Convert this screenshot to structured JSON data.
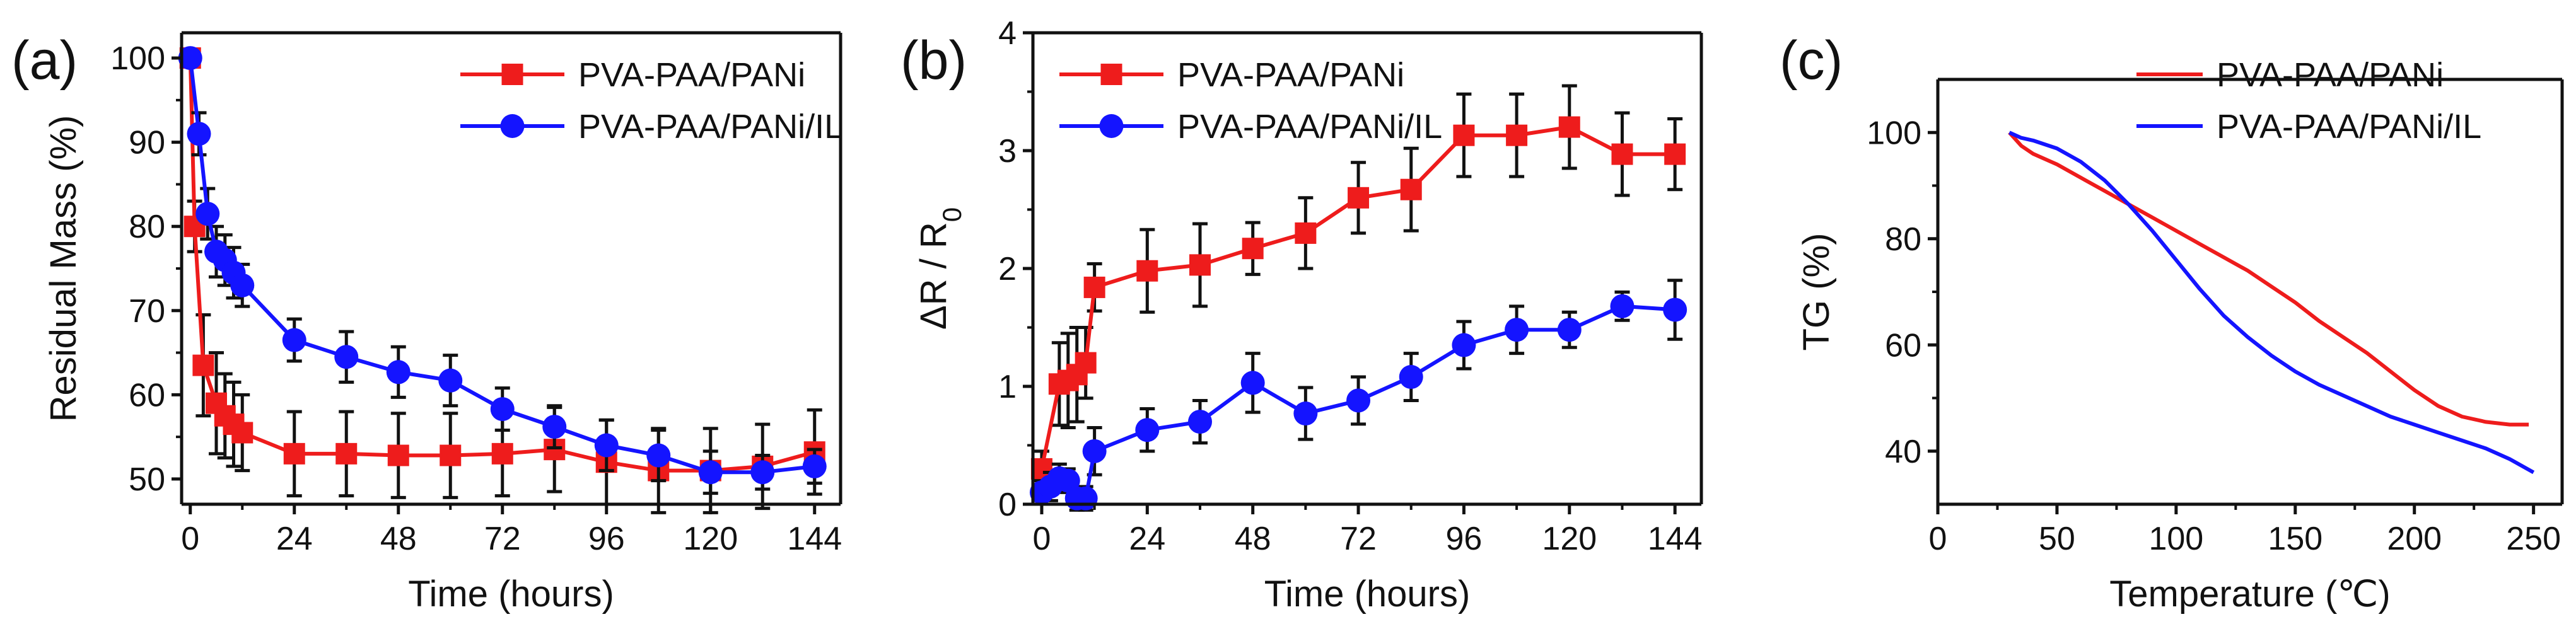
{
  "chart_data": [
    {
      "panel_label": "(a)",
      "type": "line",
      "xlabel": "Time (hours)",
      "ylabel": "Residual Mass (%)",
      "xlim": [
        -2,
        150
      ],
      "ylim": [
        47,
        103
      ],
      "xticks": [
        0,
        24,
        48,
        72,
        96,
        120,
        144
      ],
      "yticks": [
        50,
        60,
        70,
        80,
        90,
        100
      ],
      "grid": false,
      "legend": "top-right",
      "series": [
        {
          "name": "PVA-PAA/PANi",
          "color": "#ee1c1c",
          "marker": "square",
          "x": [
            0,
            1,
            3,
            6,
            8,
            10,
            12,
            24,
            36,
            48,
            60,
            72,
            84,
            96,
            108,
            120,
            132,
            144
          ],
          "y": [
            100,
            80,
            63.5,
            59,
            57.5,
            56.5,
            55.5,
            53,
            53,
            52.8,
            52.8,
            53,
            53.5,
            52,
            51,
            51,
            51.5,
            53.2
          ],
          "err": [
            0,
            3,
            6,
            6,
            5,
            5,
            4.5,
            5,
            5,
            5,
            5,
            5,
            5,
            5,
            5,
            5,
            5,
            5
          ]
        },
        {
          "name": "PVA-PAA/PANi/IL",
          "color": "#1414ff",
          "marker": "circle",
          "x": [
            0,
            2,
            4,
            6,
            8,
            10,
            12,
            24,
            36,
            48,
            60,
            72,
            84,
            96,
            108,
            120,
            132,
            144
          ],
          "y": [
            100,
            91,
            81.5,
            77,
            76,
            74.5,
            73,
            66.5,
            64.5,
            62.7,
            61.7,
            58.3,
            56.2,
            54,
            52.8,
            50.8,
            50.8,
            51.5
          ],
          "err": [
            0,
            2.5,
            3,
            3,
            3,
            3,
            2.5,
            2.5,
            3,
            3,
            3,
            2.5,
            2.5,
            3,
            3,
            2.5,
            2,
            2
          ]
        }
      ]
    },
    {
      "panel_label": "(b)",
      "type": "line",
      "xlabel": "Time (hours)",
      "ylabel": "ΔR / R0",
      "ylabel_main": "ΔR / R",
      "ylabel_sub": "0",
      "xlim": [
        -2,
        150
      ],
      "ylim": [
        0,
        4
      ],
      "xticks": [
        0,
        24,
        48,
        72,
        96,
        120,
        144
      ],
      "yticks": [
        0,
        1,
        2,
        3,
        4
      ],
      "grid": false,
      "legend": "top-left",
      "series": [
        {
          "name": "PVA-PAA/PANi",
          "color": "#ee1c1c",
          "marker": "square",
          "x": [
            0,
            4,
            6,
            8,
            10,
            12,
            24,
            36,
            48,
            60,
            72,
            84,
            96,
            108,
            120,
            132,
            144
          ],
          "y": [
            0.3,
            1.02,
            1.05,
            1.1,
            1.2,
            1.84,
            1.98,
            2.03,
            2.17,
            2.3,
            2.6,
            2.67,
            3.13,
            3.13,
            3.2,
            2.97,
            2.97
          ],
          "err": [
            0.15,
            0.35,
            0.4,
            0.4,
            0.3,
            0.2,
            0.35,
            0.35,
            0.22,
            0.3,
            0.3,
            0.35,
            0.35,
            0.35,
            0.35,
            0.35,
            0.3
          ]
        },
        {
          "name": "PVA-PAA/PANi/IL",
          "color": "#1414ff",
          "marker": "circle",
          "x": [
            0,
            2,
            4,
            6,
            8,
            10,
            12,
            24,
            36,
            48,
            60,
            72,
            84,
            96,
            108,
            120,
            132,
            144
          ],
          "y": [
            0.1,
            0.15,
            0.22,
            0.2,
            0.05,
            0.05,
            0.45,
            0.63,
            0.7,
            1.03,
            0.77,
            0.88,
            1.08,
            1.35,
            1.48,
            1.48,
            1.68,
            1.65
          ],
          "err": [
            0.1,
            0.12,
            0.12,
            0.1,
            0.1,
            0.1,
            0.2,
            0.18,
            0.18,
            0.25,
            0.22,
            0.2,
            0.2,
            0.2,
            0.2,
            0.15,
            0.12,
            0.25
          ]
        }
      ]
    },
    {
      "panel_label": "(c)",
      "type": "line",
      "xlabel": "Temperature (℃)",
      "ylabel": "TG (%)",
      "xlim": [
        0,
        262
      ],
      "ylim": [
        30,
        110
      ],
      "xticks": [
        0,
        50,
        100,
        150,
        200,
        250
      ],
      "yticks": [
        40,
        60,
        80,
        100
      ],
      "grid": false,
      "legend": "top-right",
      "series": [
        {
          "name": "PVA-PAA/PANi",
          "color": "#ee1c1c",
          "marker": "none",
          "x": [
            30,
            35,
            40,
            50,
            60,
            70,
            80,
            90,
            100,
            110,
            120,
            130,
            140,
            150,
            160,
            170,
            180,
            190,
            200,
            210,
            220,
            230,
            240,
            248
          ],
          "y": [
            100,
            97.5,
            96,
            94,
            91.5,
            89,
            86.5,
            84,
            81.5,
            79,
            76.5,
            74,
            71,
            68,
            64.5,
            61.5,
            58.5,
            55,
            51.5,
            48.5,
            46.5,
            45.5,
            45,
            45
          ]
        },
        {
          "name": "PVA-PAA/PANi/IL",
          "color": "#1414ff",
          "marker": "none",
          "x": [
            30,
            35,
            40,
            50,
            60,
            70,
            80,
            90,
            100,
            110,
            120,
            130,
            140,
            150,
            160,
            170,
            180,
            190,
            200,
            210,
            220,
            230,
            240,
            250
          ],
          "y": [
            100,
            99,
            98.5,
            97,
            94.5,
            91,
            86.5,
            81.5,
            76,
            70.5,
            65.5,
            61.5,
            58,
            55,
            52.5,
            50.5,
            48.5,
            46.5,
            45,
            43.5,
            42,
            40.5,
            38.5,
            36
          ]
        }
      ]
    }
  ]
}
